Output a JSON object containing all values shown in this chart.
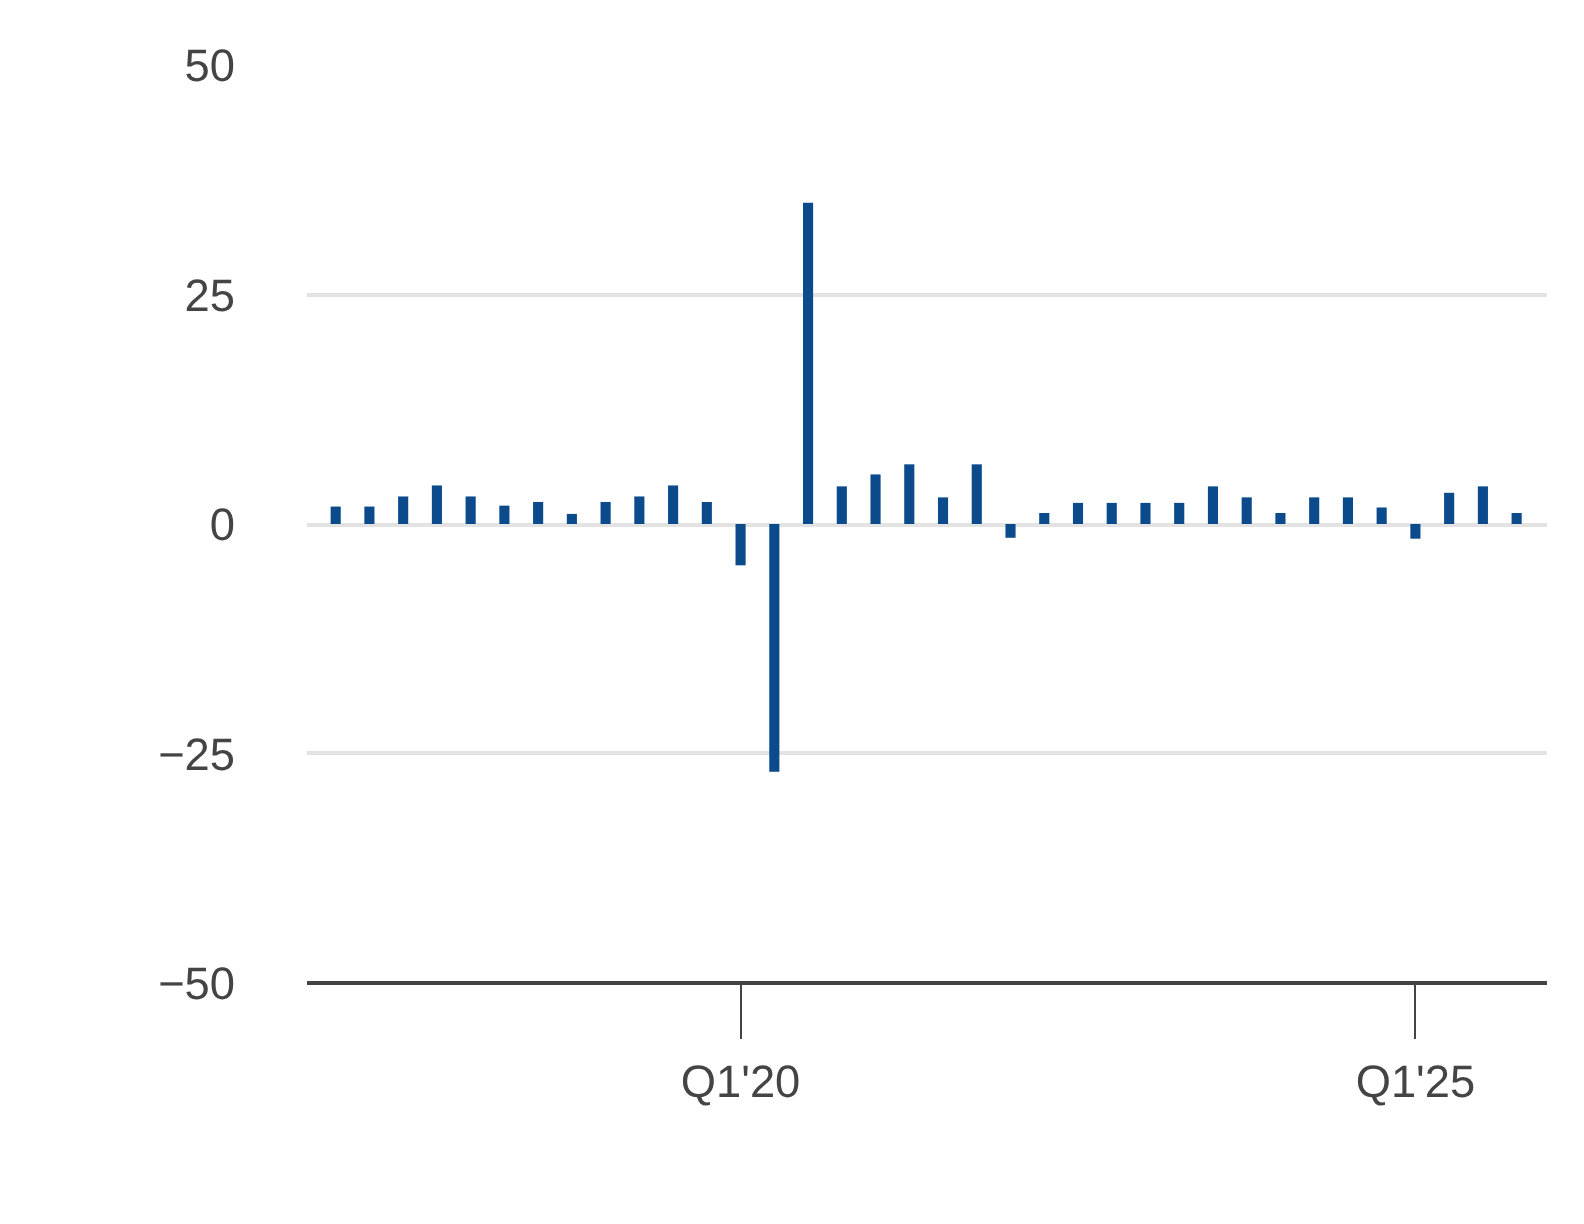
{
  "chart_data": {
    "type": "bar",
    "categories": [
      null,
      null,
      null,
      null,
      null,
      null,
      null,
      null,
      null,
      null,
      null,
      null,
      "Q1'20",
      null,
      null,
      null,
      null,
      null,
      null,
      null,
      null,
      null,
      null,
      null,
      null,
      null,
      null,
      null,
      null,
      null,
      null,
      null,
      "Q1'25",
      null,
      null,
      null
    ],
    "values": [
      1.9,
      1.9,
      3.0,
      4.2,
      3.0,
      2.0,
      2.4,
      1.1,
      2.4,
      3.0,
      4.2,
      2.4,
      -4.5,
      -27,
      35,
      4.1,
      5.4,
      6.5,
      2.9,
      6.5,
      -1.5,
      1.2,
      2.3,
      2.3,
      2.3,
      2.3,
      4.1,
      2.9,
      1.2,
      2.9,
      2.9,
      1.8,
      -1.6,
      3.4,
      4.1,
      1.2
    ],
    "color": "#0b4a8b",
    "ylim": [
      -50,
      50
    ],
    "yticks": [
      -50,
      -25,
      0,
      25,
      50
    ],
    "grid": "y"
  }
}
